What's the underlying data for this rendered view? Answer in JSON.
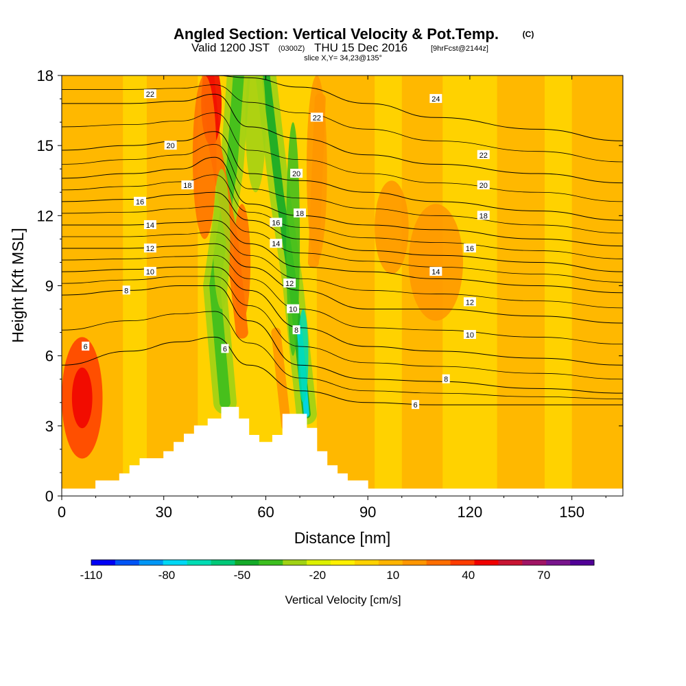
{
  "title": {
    "main": "Angled Section: Vertical Velocity & Pot.Temp.",
    "copyright": "(C)",
    "valid_prefix": "Valid 1200 JST",
    "valid_utc": "(0300Z)",
    "valid_date": "THU 15 Dec 2016",
    "forecast": "[9hrFcst@2144z]",
    "slice": "slice X,Y= 34,23@135°"
  },
  "chart_data": {
    "type": "contour",
    "xlabel": "Distance [nm]",
    "ylabel": "Height [Kft MSL]",
    "xlim": [
      0,
      165
    ],
    "ylim": [
      0,
      18
    ],
    "xticks": [
      0,
      30,
      60,
      90,
      120,
      150
    ],
    "yticks": [
      0,
      3,
      6,
      9,
      12,
      15,
      18
    ],
    "colorbar": {
      "title": "Vertical Velocity [cm/s]",
      "bounds": [
        -110,
        -100,
        -90,
        -80,
        -70,
        -60,
        -50,
        -40,
        -30,
        -20,
        -10,
        0,
        10,
        20,
        30,
        40,
        50,
        60,
        70,
        80,
        90
      ],
      "colors": [
        "#0000f5",
        "#0054f5",
        "#0096f5",
        "#00d8f5",
        "#00dcb4",
        "#00c878",
        "#14aa28",
        "#3cbe1e",
        "#a0d214",
        "#dcf000",
        "#fff000",
        "#ffd200",
        "#ffb400",
        "#ff9600",
        "#ff6e00",
        "#ff3c00",
        "#f00000",
        "#c81432",
        "#a01464",
        "#78148c",
        "#500096"
      ],
      "tick_labels": [
        -110,
        -80,
        -50,
        -20,
        10,
        40,
        70
      ]
    },
    "terrain_nm_kft": [
      [
        0,
        0.3
      ],
      [
        10,
        0.3
      ],
      [
        10,
        0.65
      ],
      [
        17,
        0.65
      ],
      [
        17,
        0.95
      ],
      [
        20,
        0.95
      ],
      [
        20,
        1.3
      ],
      [
        23,
        1.3
      ],
      [
        23,
        1.6
      ],
      [
        30,
        1.6
      ],
      [
        30,
        1.9
      ],
      [
        33,
        1.9
      ],
      [
        33,
        2.3
      ],
      [
        36,
        2.3
      ],
      [
        36,
        2.65
      ],
      [
        39,
        2.65
      ],
      [
        39,
        3.0
      ],
      [
        43,
        3.0
      ],
      [
        43,
        3.3
      ],
      [
        47,
        3.3
      ],
      [
        47,
        3.8
      ],
      [
        52,
        3.8
      ],
      [
        52,
        3.3
      ],
      [
        55,
        3.3
      ],
      [
        55,
        2.6
      ],
      [
        58,
        2.6
      ],
      [
        58,
        2.3
      ],
      [
        62,
        2.3
      ],
      [
        62,
        2.6
      ],
      [
        65,
        2.6
      ],
      [
        65,
        3.5
      ],
      [
        72,
        3.5
      ],
      [
        72,
        2.9
      ],
      [
        75,
        2.9
      ],
      [
        75,
        1.9
      ],
      [
        78,
        1.9
      ],
      [
        78,
        1.3
      ],
      [
        81,
        1.3
      ],
      [
        81,
        0.95
      ],
      [
        84,
        0.95
      ],
      [
        84,
        0.65
      ],
      [
        90,
        0.65
      ],
      [
        90,
        0.3
      ],
      [
        165,
        0.3
      ]
    ],
    "wind_color_regions": [
      {
        "cx": 6,
        "cy": 4.2,
        "rx": 6,
        "ry": 2.6,
        "value": 40
      },
      {
        "cx": 6,
        "cy": 4.2,
        "rx": 3,
        "ry": 1.3,
        "value": 50
      },
      {
        "cx": 44,
        "cy": 16.8,
        "rx": 3,
        "ry": 1.8,
        "value": 50
      },
      {
        "cx": 42,
        "cy": 14.5,
        "rx": 3.5,
        "ry": 3.5,
        "value": 30
      },
      {
        "cx": 47,
        "cy": 11,
        "rx": 2.5,
        "ry": 3,
        "value": -30
      },
      {
        "cx": 53,
        "cy": 10,
        "rx": 2.5,
        "ry": 2.5,
        "value": 30
      },
      {
        "cx": 57,
        "cy": 16,
        "rx": 3,
        "ry": 3,
        "value": -30
      },
      {
        "cx": 68,
        "cy": 11,
        "rx": 2,
        "ry": 5,
        "value": -40
      },
      {
        "cx": 71,
        "cy": 6,
        "rx": 1.5,
        "ry": 2,
        "value": -70
      },
      {
        "cx": 75,
        "cy": 14,
        "rx": 3,
        "ry": 4,
        "value": 20
      },
      {
        "cx": 97,
        "cy": 11.5,
        "rx": 5,
        "ry": 2,
        "value": 20
      },
      {
        "cx": 110,
        "cy": 10,
        "rx": 8,
        "ry": 2.5,
        "value": 20
      }
    ],
    "theta_contours": [
      {
        "label": "6",
        "y": [
          5.6,
          6.2,
          6.6,
          6.8,
          5.6,
          4.5,
          4.0,
          3.9,
          3.9,
          3.9
        ]
      },
      {
        "label": "8",
        "y": [
          8.6,
          8.8,
          9.0,
          9.0,
          7.5,
          5.6,
          5.0,
          4.9,
          4.6,
          4.4
        ]
      },
      {
        "label": "10",
        "y": [
          9.6,
          9.7,
          9.8,
          9.8,
          8.8,
          7.2,
          6.4,
          6.2,
          5.9,
          5.6
        ]
      },
      {
        "label": "12",
        "y": [
          10.6,
          10.6,
          10.7,
          10.8,
          9.8,
          8.8,
          8.0,
          8.0,
          7.7,
          7.4
        ]
      },
      {
        "label": "14",
        "y": [
          11.6,
          11.6,
          11.7,
          11.8,
          10.8,
          9.8,
          9.6,
          9.3,
          9.0,
          8.7
        ]
      },
      {
        "label": "16",
        "y": [
          12.6,
          12.7,
          12.9,
          13.0,
          11.8,
          11.0,
          10.5,
          10.3,
          10.0,
          9.6
        ]
      },
      {
        "label": "18",
        "y": [
          13.6,
          13.8,
          14.0,
          14.5,
          12.5,
          12.0,
          11.6,
          11.4,
          11.0,
          10.7
        ]
      },
      {
        "label": "20",
        "y": [
          14.8,
          15.0,
          15.2,
          15.6,
          13.8,
          13.5,
          13.0,
          12.6,
          12.2,
          11.8
        ]
      },
      {
        "label": "22",
        "y": [
          16.8,
          16.8,
          16.9,
          17.2,
          15.8,
          15.3,
          14.6,
          14.2,
          13.8,
          13.4
        ]
      },
      {
        "label": "24",
        "y": [
          18.0,
          18.0,
          18.0,
          18.0,
          17.9,
          17.5,
          16.8,
          16.2,
          15.7,
          15.2
        ]
      }
    ],
    "theta_x_nm": [
      0,
      20,
      35,
      45,
      55,
      70,
      90,
      110,
      140,
      165
    ],
    "contour_labels": [
      {
        "text": "22",
        "x": 26,
        "y": 17.2
      },
      {
        "text": "20",
        "x": 32,
        "y": 15.0
      },
      {
        "text": "18",
        "x": 37,
        "y": 13.3
      },
      {
        "text": "16",
        "x": 23,
        "y": 12.6
      },
      {
        "text": "14",
        "x": 26,
        "y": 11.6
      },
      {
        "text": "12",
        "x": 26,
        "y": 10.6
      },
      {
        "text": "10",
        "x": 26,
        "y": 9.6
      },
      {
        "text": "8",
        "x": 19,
        "y": 8.8
      },
      {
        "text": "6",
        "x": 7,
        "y": 6.4
      },
      {
        "text": "6",
        "x": 48,
        "y": 6.3
      },
      {
        "text": "16",
        "x": 63,
        "y": 11.7
      },
      {
        "text": "14",
        "x": 63,
        "y": 10.8
      },
      {
        "text": "18",
        "x": 70,
        "y": 12.1
      },
      {
        "text": "20",
        "x": 69,
        "y": 13.8
      },
      {
        "text": "22",
        "x": 75,
        "y": 16.2
      },
      {
        "text": "12",
        "x": 67,
        "y": 9.1
      },
      {
        "text": "10",
        "x": 68,
        "y": 8.0
      },
      {
        "text": "8",
        "x": 69,
        "y": 7.1
      },
      {
        "text": "24",
        "x": 110,
        "y": 17.0
      },
      {
        "text": "22",
        "x": 124,
        "y": 14.6
      },
      {
        "text": "20",
        "x": 124,
        "y": 13.3
      },
      {
        "text": "18",
        "x": 124,
        "y": 12.0
      },
      {
        "text": "16",
        "x": 120,
        "y": 10.6
      },
      {
        "text": "14",
        "x": 110,
        "y": 9.6
      },
      {
        "text": "12",
        "x": 120,
        "y": 8.3
      },
      {
        "text": "10",
        "x": 120,
        "y": 6.9
      },
      {
        "text": "8",
        "x": 113,
        "y": 5.0
      },
      {
        "text": "6",
        "x": 104,
        "y": 3.9
      }
    ]
  }
}
